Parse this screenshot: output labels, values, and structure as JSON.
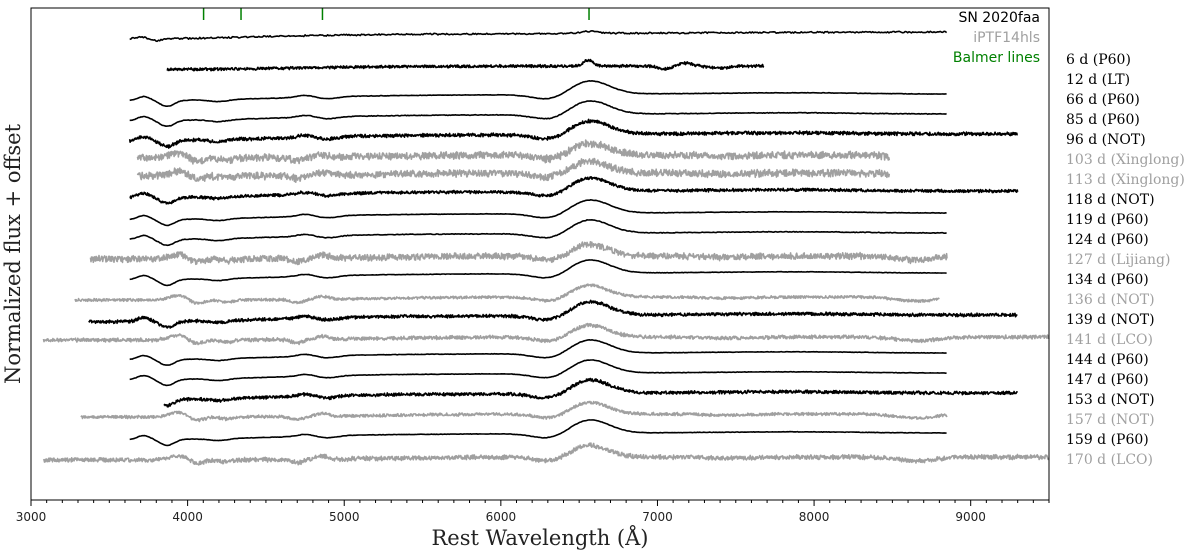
{
  "chart_data": {
    "type": "line",
    "title": "",
    "xlabel": "Rest Wavelength (Å)",
    "ylabel": "Normalized flux + offset",
    "xlim": [
      3000,
      9500
    ],
    "x_ticks": [
      3000,
      4000,
      5000,
      6000,
      7000,
      8000,
      9000
    ],
    "x_tick_labels": [
      "3000",
      "4000",
      "5000",
      "6000",
      "7000",
      "8000",
      "9000"
    ],
    "y_ticks_shown": false,
    "grid": false,
    "legend_position": "top-right",
    "legend": [
      {
        "label": "SN 2020faa",
        "color": "#000000"
      },
      {
        "label": "iPTF14hls",
        "color": "#a0a0a0"
      },
      {
        "label": "Balmer lines",
        "color": "#008000"
      }
    ],
    "balmer_lines": [
      4102,
      4341,
      4861,
      6563
    ],
    "series": [
      {
        "name": "SN 2020faa",
        "label": "6 d (P60)",
        "instrument": "P60",
        "epoch_days": 6,
        "x_range": [
          3630,
          8850
        ],
        "color": "#000000"
      },
      {
        "name": "SN 2020faa",
        "label": "12 d (LT)",
        "instrument": "LT",
        "epoch_days": 12,
        "x_range": [
          3870,
          7680
        ],
        "color": "#000000"
      },
      {
        "name": "SN 2020faa",
        "label": "66 d (P60)",
        "instrument": "P60",
        "epoch_days": 66,
        "x_range": [
          3630,
          8850
        ],
        "color": "#000000"
      },
      {
        "name": "SN 2020faa",
        "label": "85 d (P60)",
        "instrument": "P60",
        "epoch_days": 85,
        "x_range": [
          3630,
          8850
        ],
        "color": "#000000"
      },
      {
        "name": "SN 2020faa",
        "label": "96 d (NOT)",
        "instrument": "NOT",
        "epoch_days": 96,
        "x_range": [
          3630,
          9300
        ],
        "color": "#000000"
      },
      {
        "name": "iPTF14hls",
        "label": "103 d (Xinglong)",
        "instrument": "Xinglong",
        "epoch_days": 103,
        "x_range": [
          3680,
          8480
        ],
        "color": "#a0a0a0"
      },
      {
        "name": "iPTF14hls",
        "label": "113 d (Xinglong)",
        "instrument": "Xinglong",
        "epoch_days": 113,
        "x_range": [
          3680,
          8480
        ],
        "color": "#a0a0a0"
      },
      {
        "name": "SN 2020faa",
        "label": "118 d (NOT)",
        "instrument": "NOT",
        "epoch_days": 118,
        "x_range": [
          3630,
          9300
        ],
        "color": "#000000"
      },
      {
        "name": "SN 2020faa",
        "label": "119 d (P60)",
        "instrument": "P60",
        "epoch_days": 119,
        "x_range": [
          3630,
          8850
        ],
        "color": "#000000"
      },
      {
        "name": "SN 2020faa",
        "label": "124 d (P60)",
        "instrument": "P60",
        "epoch_days": 124,
        "x_range": [
          3630,
          8850
        ],
        "color": "#000000"
      },
      {
        "name": "iPTF14hls",
        "label": "127 d (Lijiang)",
        "instrument": "Lijiang",
        "epoch_days": 127,
        "x_range": [
          3380,
          8850
        ],
        "color": "#a0a0a0"
      },
      {
        "name": "SN 2020faa",
        "label": "134 d (P60)",
        "instrument": "P60",
        "epoch_days": 134,
        "x_range": [
          3630,
          8850
        ],
        "color": "#000000"
      },
      {
        "name": "iPTF14hls",
        "label": "136 d (NOT)",
        "instrument": "NOT",
        "epoch_days": 136,
        "x_range": [
          3280,
          8800
        ],
        "color": "#a0a0a0"
      },
      {
        "name": "SN 2020faa",
        "label": "139 d (NOT)",
        "instrument": "NOT",
        "epoch_days": 139,
        "x_range": [
          3370,
          9300
        ],
        "color": "#000000"
      },
      {
        "name": "iPTF14hls",
        "label": "141 d (LCO)",
        "instrument": "LCO",
        "epoch_days": 141,
        "x_range": [
          3080,
          9500
        ],
        "color": "#a0a0a0"
      },
      {
        "name": "SN 2020faa",
        "label": "144 d (P60)",
        "instrument": "P60",
        "epoch_days": 144,
        "x_range": [
          3630,
          8850
        ],
        "color": "#000000"
      },
      {
        "name": "SN 2020faa",
        "label": "147 d (P60)",
        "instrument": "P60",
        "epoch_days": 147,
        "x_range": [
          3630,
          8850
        ],
        "color": "#000000"
      },
      {
        "name": "SN 2020faa",
        "label": "153 d (NOT)",
        "instrument": "NOT",
        "epoch_days": 153,
        "x_range": [
          3850,
          9300
        ],
        "color": "#000000"
      },
      {
        "name": "iPTF14hls",
        "label": "157 d (NOT)",
        "instrument": "NOT",
        "epoch_days": 157,
        "x_range": [
          3320,
          8850
        ],
        "color": "#a0a0a0"
      },
      {
        "name": "SN 2020faa",
        "label": "159 d (P60)",
        "instrument": "P60",
        "epoch_days": 159,
        "x_range": [
          3630,
          8850
        ],
        "color": "#000000"
      },
      {
        "name": "iPTF14hls",
        "label": "170 d (LCO)",
        "instrument": "LCO",
        "epoch_days": 170,
        "x_range": [
          3080,
          9500
        ],
        "color": "#a0a0a0"
      }
    ]
  }
}
